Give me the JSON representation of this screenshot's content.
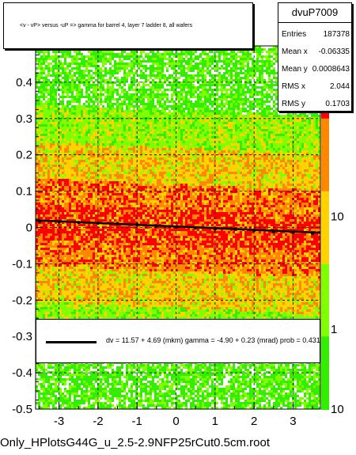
{
  "chart_data": {
    "type": "heatmap",
    "title": "<v - vP>       versus  -uP =>  gamma for barrel 4, layer 7 ladder 8, all wafers",
    "xlabel": "",
    "ylabel": "",
    "xlim": [
      -3.6,
      3.7
    ],
    "ylim": [
      -0.5,
      0.5
    ],
    "x_ticks": [
      {
        "value": -3,
        "label": "-3"
      },
      {
        "value": -2,
        "label": "-2"
      },
      {
        "value": -1,
        "label": "-1"
      },
      {
        "value": 0,
        "label": "0"
      },
      {
        "value": 1,
        "label": "1"
      },
      {
        "value": 2,
        "label": "2"
      },
      {
        "value": 3,
        "label": "3"
      }
    ],
    "y_ticks": [
      {
        "value": -0.5,
        "label": "-0.5"
      },
      {
        "value": -0.4,
        "label": "-0.4"
      },
      {
        "value": -0.3,
        "label": "-0.3"
      },
      {
        "value": -0.2,
        "label": "-0.2"
      },
      {
        "value": -0.1,
        "label": "-0.1"
      },
      {
        "value": 0,
        "label": "0"
      },
      {
        "value": 0.1,
        "label": "0.1"
      },
      {
        "value": 0.2,
        "label": "0.2"
      },
      {
        "value": 0.3,
        "label": "0.3"
      },
      {
        "value": 0.4,
        "label": "0.4"
      },
      {
        "value": 0.5,
        "label": "0.5"
      }
    ],
    "z_scale": "log",
    "z_ticks": [
      {
        "value": 1,
        "label": "1"
      },
      {
        "value": 10,
        "label": "10"
      },
      {
        "value": 0.1,
        "label": "10"
      }
    ],
    "grid": true,
    "profile_points": {
      "x": [
        -3.5,
        -3.0,
        -2.5,
        -2.0,
        -1.5,
        -1.0,
        -0.5,
        0.0,
        0.5,
        1.0,
        1.5,
        2.0,
        2.5,
        3.0,
        3.5
      ],
      "y": [
        0.017,
        0.015,
        0.014,
        0.012,
        0.01,
        0.008,
        0.004,
        0.001,
        -0.001,
        -0.004,
        -0.005,
        -0.008,
        -0.012,
        -0.014,
        -0.016
      ]
    },
    "fit_line": {
      "x": [
        -3.6,
        3.7
      ],
      "y": [
        0.0198,
        -0.0144
      ]
    },
    "stats": {
      "name": "dvuP7009",
      "rows": [
        {
          "label": "Entries",
          "value": "187378"
        },
        {
          "label": "Mean x",
          "value": "-0.06335"
        },
        {
          "label": "Mean y",
          "value": "0.0008643"
        },
        {
          "label": "RMS x",
          "value": "2.044"
        },
        {
          "label": "RMS y",
          "value": "0.1703"
        }
      ]
    },
    "fit_text": "dv =   11.57 +  4.69 (mkm) gamma =   -4.90 +  0.23 (mrad) prob = 0.431",
    "footer": "Only_HPlotsG44G_u_2.5-2.9NFP25rCut0.5cm.root",
    "colors": {
      "high": "#ff0000",
      "mid": "#ff8800",
      "low": "#ffd200",
      "faint": "#7fff00",
      "sparse": "#33ee00",
      "profile": "#000000"
    }
  }
}
